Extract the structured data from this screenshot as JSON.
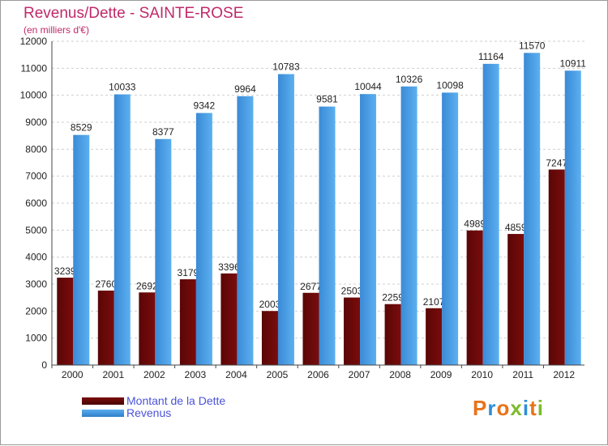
{
  "chart_data": {
    "type": "bar",
    "title": "Revenus/Dette - SAINTE-ROSE",
    "subtitle": "(en milliers d'€)",
    "categories": [
      "2000",
      "2001",
      "2002",
      "2003",
      "2004",
      "2005",
      "2006",
      "2007",
      "2008",
      "2009",
      "2010",
      "2011",
      "2012"
    ],
    "series": [
      {
        "name": "Montant de la Dette",
        "color": "#6b0a0a",
        "values": [
          3239,
          2760,
          2692,
          3179,
          3396,
          2003,
          2677,
          2503,
          2259,
          2107,
          4989,
          4859,
          7247
        ],
        "labels": [
          "3239",
          "2760",
          "2692",
          "3179",
          "3396",
          "2003",
          "2677",
          "2503",
          "2259",
          "2107",
          "4989",
          "4859",
          "7247"
        ]
      },
      {
        "name": "Revenus",
        "color": "#4aa3e8",
        "values": [
          8529,
          10033,
          8377,
          9342,
          9964,
          10783,
          9581,
          10044,
          10326,
          10098,
          11164,
          11570,
          10911
        ],
        "labels": [
          "8529",
          "10033",
          "8377",
          "9342",
          "9964",
          "10783",
          "9581",
          "10044",
          "10326",
          "10098",
          "11164",
          "11570",
          "10911"
        ]
      }
    ],
    "yticks": [
      0,
      1000,
      2000,
      3000,
      4000,
      5000,
      6000,
      7000,
      8000,
      9000,
      10000,
      11000,
      12000
    ],
    "ylim": [
      0,
      12000
    ],
    "grid": true,
    "xlabel": "",
    "ylabel": ""
  },
  "legend": {
    "items": [
      {
        "label": "Montant de la Dette",
        "color": "#6b0a0a"
      },
      {
        "label": "Revenus",
        "color": "#4aa3e8"
      }
    ]
  },
  "logo": {
    "text": "Proxiti"
  }
}
